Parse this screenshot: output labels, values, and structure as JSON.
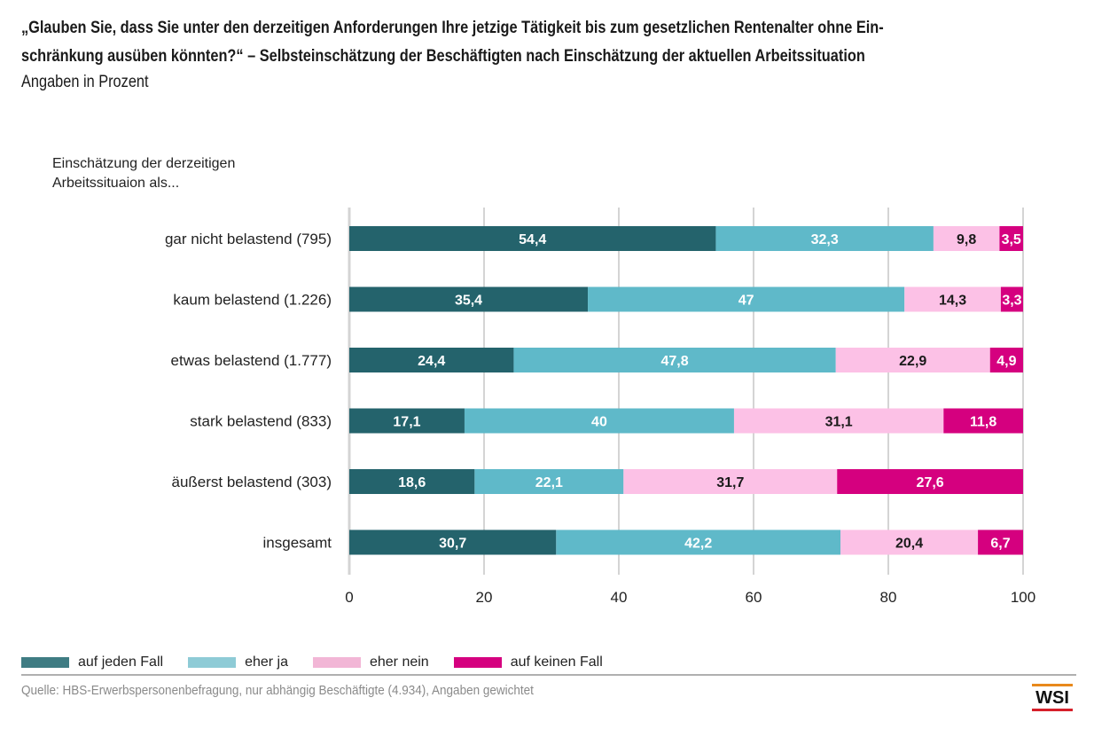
{
  "header": {
    "title_line1": "„Glauben Sie, dass Sie unter den derzeitigen Anforderungen Ihre jetzige Tätigkeit bis zum gesetzlichen Rentenalter ohne Ein-",
    "title_line2": "schränkung ausüben könnten?“ – Selbsteinschätzung der Beschäftigten nach Einschätzung der aktuellen Arbeitssituation",
    "subtitle": "Angaben in Prozent"
  },
  "axis_caption": {
    "line1": "Einschätzung der derzeitigen",
    "line2": "Arbeitssituaion als..."
  },
  "chart_data": {
    "type": "bar",
    "orientation": "horizontal",
    "stacked": true,
    "title": "„Glauben Sie, dass Sie unter den derzeitigen Anforderungen Ihre jetzige Tätigkeit bis zum gesetzlichen Rentenalter ohne Einschränkung ausüben könnten?“ – Selbsteinschätzung der Beschäftigten nach Einschätzung der aktuellen Arbeitssituation",
    "subtitle": "Angaben in Prozent",
    "ylabel": "Einschätzung der derzeitigen Arbeitssituaion als...",
    "xlabel": "",
    "xlim": [
      0,
      100
    ],
    "xticks": [
      0,
      20,
      40,
      60,
      80,
      100
    ],
    "grid": true,
    "legend_position": "bottom-left",
    "categories": [
      "gar nicht belastend (795)",
      "kaum belastend (1.226)",
      "etwas belastend (1.777)",
      "stark belastend (833)",
      "äußerst belastend (303)",
      "insgesamt"
    ],
    "series": [
      {
        "name": "auf jeden Fall",
        "color": "#24636c",
        "label_color": "#ffffff",
        "values": [
          54.4,
          35.4,
          24.4,
          17.1,
          18.6,
          30.7
        ],
        "labels": [
          "54,4",
          "35,4",
          "24,4",
          "17,1",
          "18,6",
          "30,7"
        ]
      },
      {
        "name": "eher ja",
        "color": "#5fb9c9",
        "label_color": "#ffffff",
        "values": [
          32.3,
          47,
          47.8,
          40,
          22.1,
          42.2
        ],
        "labels": [
          "32,3",
          "47",
          "47,8",
          "40",
          "22,1",
          "42,2"
        ]
      },
      {
        "name": "eher nein",
        "color": "#fcc1e6",
        "label_color": "#1a1a1a",
        "values": [
          9.8,
          14.3,
          22.9,
          31.1,
          31.7,
          20.4
        ],
        "labels": [
          "9,8",
          "14,3",
          "22,9",
          "31,1",
          "31,7",
          "20,4"
        ]
      },
      {
        "name": "auf keinen Fall",
        "color": "#d5007f",
        "label_color": "#ffffff",
        "values": [
          3.5,
          3.3,
          4.9,
          11.8,
          27.6,
          6.7
        ],
        "labels": [
          "3,5",
          "3,3",
          "4,9",
          "11,8",
          "27,6",
          "6,7"
        ]
      }
    ]
  },
  "legend": {
    "items": [
      {
        "label": "auf jeden Fall",
        "color": "#3f7c83"
      },
      {
        "label": "eher ja",
        "color": "#8ecbd6"
      },
      {
        "label": "eher nein",
        "color": "#f2b6d6"
      },
      {
        "label": "auf keinen Fall",
        "color": "#d5007f"
      }
    ]
  },
  "footer": {
    "source": "Quelle: HBS-Erwerbspersonenbefragung, nur abhängig Beschäftigte (4.934), Angaben gewichtet",
    "logo_text": "WSI"
  }
}
